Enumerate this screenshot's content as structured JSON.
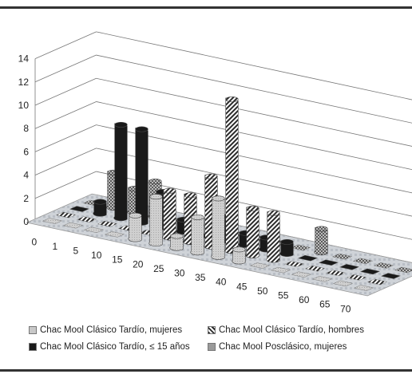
{
  "chart_data": {
    "type": "bar",
    "subtype": "3d-column",
    "categories": [
      "0",
      "1",
      "5",
      "10",
      "15",
      "20",
      "25",
      "30",
      "35",
      "40",
      "45",
      "50",
      "55",
      "60",
      "65",
      "70"
    ],
    "ylim": [
      0,
      14
    ],
    "yticks": [
      "0",
      "2",
      "4",
      "6",
      "8",
      "10",
      "12",
      "14"
    ],
    "grid": true,
    "legend_position": "bottom",
    "series": [
      {
        "name": "Chac Mool Clásico Tardío, mujeres",
        "color": "#c8c8c8",
        "pattern": "light",
        "values": [
          0,
          0,
          0,
          0,
          2,
          4,
          1,
          3,
          5,
          1,
          0,
          0,
          0,
          0,
          0,
          0
        ]
      },
      {
        "name": "Chac Mool Clásico Tardío, hombres",
        "color": "#2a2a2a",
        "pattern": "stripe",
        "values": [
          0,
          0,
          0,
          0,
          0,
          4,
          4,
          6,
          13,
          4,
          4,
          0,
          0,
          0,
          0,
          0
        ]
      },
      {
        "name": "Chac Mool Clásico Tardío, ≤ 15 años",
        "color": "#1a1a1a",
        "pattern": "solid",
        "values": [
          0,
          1,
          8,
          8,
          3,
          1,
          0,
          2,
          1,
          1,
          1,
          0,
          0,
          0,
          0,
          0
        ]
      },
      {
        "name": "Chac Mool Posclásico, mujeres",
        "color": "#9a9a9a",
        "pattern": "check",
        "values": [
          0,
          3,
          2,
          3,
          0,
          0,
          0,
          0,
          0,
          0,
          0,
          2,
          0,
          0,
          0,
          0
        ]
      }
    ]
  }
}
